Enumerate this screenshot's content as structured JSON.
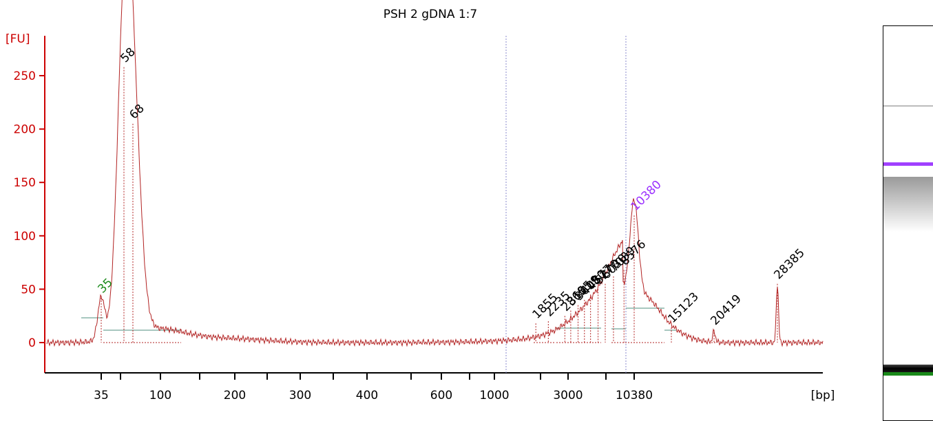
{
  "chart_data": {
    "type": "line",
    "title": "PSH 2 gDNA 1:7",
    "ylabel": "[FU]",
    "xlabel": "[bp]",
    "ylim": [
      -25,
      270
    ],
    "yticks": [
      "0",
      "50",
      "100",
      "150",
      "200",
      "250"
    ],
    "ytick_values": [
      0,
      50,
      100,
      150,
      200,
      250
    ],
    "xticks": [
      "35",
      "100",
      "200",
      "300",
      "400",
      "600",
      "1000",
      "3000",
      "10380"
    ],
    "peaks": [
      {
        "label": "35",
        "x_bp": 35,
        "y": 42,
        "color": "#1a8a1a"
      },
      {
        "label": "58",
        "x_bp": 58,
        "y": 258,
        "color": "#000000"
      },
      {
        "label": "68",
        "x_bp": 68,
        "y": 205,
        "color": "#000000"
      },
      {
        "label": "1855",
        "x_bp": 1855,
        "y": 18,
        "color": "#000000"
      },
      {
        "label": "2235",
        "x_bp": 2235,
        "y": 20,
        "color": "#000000"
      },
      {
        "label": "2860",
        "x_bp": 2860,
        "y": 25,
        "color": "#000000"
      },
      {
        "label": "3155",
        "x_bp": 3155,
        "y": 30,
        "color": "#000000"
      },
      {
        "label": "3619",
        "x_bp": 3619,
        "y": 35,
        "color": "#000000"
      },
      {
        "label": "4080",
        "x_bp": 4080,
        "y": 40,
        "color": "#000000"
      },
      {
        "label": "4577",
        "x_bp": 4577,
        "y": 45,
        "color": "#000000"
      },
      {
        "label": "5270",
        "x_bp": 5270,
        "y": 50,
        "color": "#000000"
      },
      {
        "label": "6030",
        "x_bp": 6030,
        "y": 55,
        "color": "#000000"
      },
      {
        "label": "7039",
        "x_bp": 7039,
        "y": 62,
        "color": "#000000"
      },
      {
        "label": "8576",
        "x_bp": 8576,
        "y": 68,
        "color": "#000000"
      },
      {
        "label": "10380",
        "x_bp": 10380,
        "y": 119,
        "color": "#9b30ff"
      },
      {
        "label": "15123",
        "x_bp": 15123,
        "y": 14,
        "color": "#000000"
      },
      {
        "label": "20419",
        "x_bp": 20419,
        "y": 12,
        "color": "#000000"
      },
      {
        "label": "28385",
        "x_bp": 28385,
        "y": 55,
        "color": "#000000"
      }
    ],
    "grid": false,
    "legend": "none"
  },
  "colors": {
    "trace": "#b22222",
    "axis": "#cc0000",
    "lower_marker": "#1a8a1a",
    "upper_marker": "#9b30ff",
    "baseline": "#4f8f7f",
    "region_line": "#8888cc"
  },
  "gel": {
    "bands": [
      {
        "name": "faint-top-band",
        "level": 0.2,
        "color": "#bbbbbb"
      },
      {
        "name": "upper-marker-band",
        "level": 0.345,
        "color": "#a040ff"
      },
      {
        "name": "smear-band",
        "level": 0.38,
        "color": "#aaaaaa"
      },
      {
        "name": "dark-low-band",
        "level": 0.855,
        "color": "#111111"
      },
      {
        "name": "lower-marker-band",
        "level": 0.875,
        "color": "#1a8a1a"
      }
    ]
  }
}
